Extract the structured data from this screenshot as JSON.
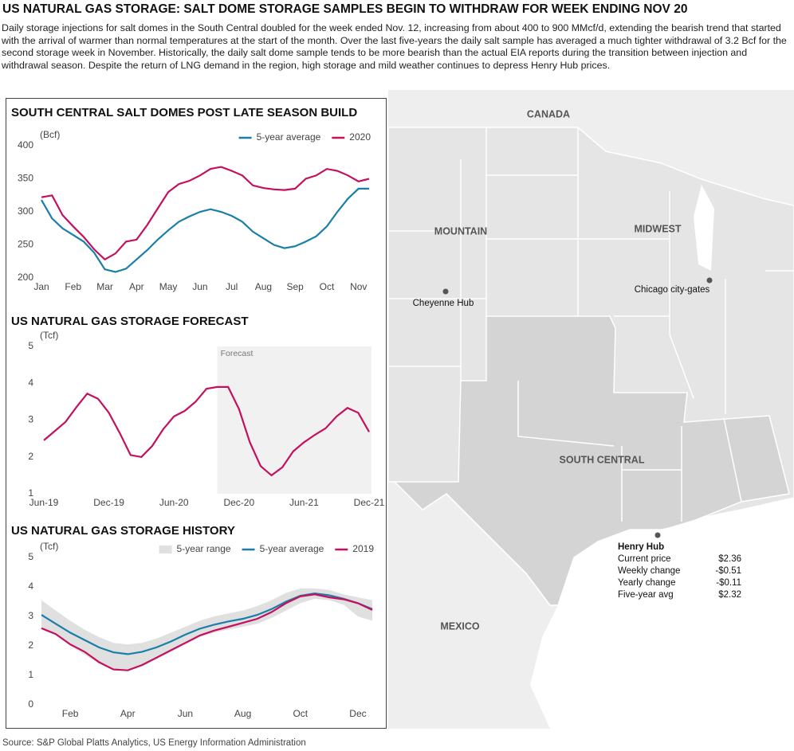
{
  "header": {
    "title": "US NATURAL GAS STORAGE: SALT DOME STORAGE SAMPLES BEGIN TO WITHDRAW FOR WEEK ENDING NOV 20",
    "description": "Daily storage injections for salt domes in the South Central doubled for the week ended Nov. 12, increasing from about 400 to 900 MMcf/d, extending the bearish trend that started with the arrival of warmer than normal temperatures at the start of the month. Over the last five-years the daily salt sample has averaged a much tighter withdrawal of 3.2 Bcf for the second storage week in November. Historically, the daily salt dome sample tends to be more bearish than the actual EIA reports during the transition between injection and withdrawal season. Despite the return of LNG demand in the region, high storage and mild weather continues to depress Henry Hub prices."
  },
  "chart_data": [
    {
      "type": "line",
      "title": "SOUTH CENTRAL SALT DOMES POST LATE SEASON BUILD",
      "y_label": "(Bcf)",
      "categories": [
        "Jan",
        null,
        null,
        "Feb",
        null,
        null,
        "Mar",
        null,
        null,
        "Apr",
        null,
        null,
        "May",
        null,
        null,
        "Jun",
        null,
        null,
        "Jul",
        null,
        null,
        "Aug",
        null,
        null,
        "Sep",
        null,
        null,
        "Oct",
        null,
        null,
        "Nov",
        null
      ],
      "series": [
        {
          "name": "5-year average",
          "color": "#1a7fa8",
          "values": [
            318,
            290,
            275,
            265,
            255,
            238,
            213,
            209,
            214,
            228,
            242,
            258,
            272,
            285,
            293,
            300,
            304,
            300,
            294,
            285,
            270,
            260,
            250,
            245,
            248,
            255,
            263,
            278,
            300,
            320,
            335,
            335
          ]
        },
        {
          "name": "2020",
          "color": "#c4105e",
          "values": [
            322,
            325,
            295,
            278,
            262,
            243,
            228,
            237,
            255,
            258,
            280,
            305,
            330,
            342,
            347,
            355,
            365,
            368,
            362,
            355,
            340,
            336,
            334,
            333,
            335,
            350,
            355,
            365,
            362,
            355,
            346,
            350
          ]
        }
      ],
      "ylim": [
        200,
        400
      ],
      "yticks": [
        200,
        250,
        300,
        350,
        400
      ]
    },
    {
      "type": "line",
      "title": "US NATURAL GAS STORAGE FORECAST",
      "y_label": "(Tcf)",
      "categories": [
        "Jun-19",
        null,
        null,
        null,
        null,
        null,
        "Dec-19",
        null,
        null,
        null,
        null,
        null,
        "Jun-20",
        null,
        null,
        null,
        null,
        null,
        "Dec-20",
        null,
        null,
        null,
        null,
        null,
        "Jun-21",
        null,
        null,
        null,
        null,
        null,
        "Dec-21"
      ],
      "color": "#c4105e",
      "values": [
        2.45,
        2.7,
        2.95,
        3.35,
        3.72,
        3.58,
        3.2,
        2.65,
        2.05,
        2.0,
        2.3,
        2.75,
        3.1,
        3.25,
        3.5,
        3.85,
        3.9,
        3.9,
        3.3,
        2.4,
        1.75,
        1.5,
        1.72,
        2.15,
        2.4,
        2.6,
        2.78,
        3.1,
        3.33,
        3.2,
        2.68
      ],
      "forecast": {
        "label": "Forecast",
        "start_index": 16
      },
      "ylim": [
        1,
        5
      ],
      "yticks": [
        1,
        2,
        3,
        4,
        5
      ]
    },
    {
      "type": "line",
      "title": "US NATURAL GAS STORAGE HISTORY",
      "y_label": "(Tcf)",
      "categories": [
        null,
        null,
        "Feb",
        null,
        null,
        null,
        "Apr",
        null,
        null,
        null,
        "Jun",
        null,
        null,
        null,
        "Aug",
        null,
        null,
        null,
        "Oct",
        null,
        null,
        null,
        "Dec",
        null
      ],
      "series": [
        {
          "name": "5-year range",
          "color": "#e0e0e0",
          "low": [
            2.65,
            2.4,
            2.0,
            1.7,
            1.4,
            1.2,
            1.15,
            1.3,
            1.55,
            1.8,
            2.05,
            2.3,
            2.45,
            2.55,
            2.65,
            2.75,
            2.95,
            3.2,
            3.45,
            3.6,
            3.55,
            3.4,
            3.0,
            2.85
          ],
          "high": [
            3.55,
            3.2,
            2.85,
            2.55,
            2.3,
            2.1,
            2.05,
            2.1,
            2.25,
            2.45,
            2.65,
            2.85,
            3.0,
            3.1,
            3.2,
            3.35,
            3.55,
            3.8,
            3.95,
            3.95,
            3.9,
            3.75,
            3.65,
            3.55
          ]
        },
        {
          "name": "5-year average",
          "color": "#1a7fa8",
          "values": [
            3.05,
            2.75,
            2.45,
            2.2,
            1.95,
            1.78,
            1.72,
            1.8,
            1.95,
            2.15,
            2.38,
            2.58,
            2.72,
            2.83,
            2.92,
            3.05,
            3.25,
            3.5,
            3.7,
            3.78,
            3.72,
            3.6,
            3.45,
            3.25
          ]
        },
        {
          "name": "2019",
          "color": "#c4105e",
          "values": [
            2.6,
            2.4,
            2.05,
            1.8,
            1.45,
            1.2,
            1.17,
            1.35,
            1.6,
            1.85,
            2.1,
            2.35,
            2.52,
            2.65,
            2.78,
            2.92,
            3.15,
            3.45,
            3.68,
            3.75,
            3.65,
            3.58,
            3.45,
            3.22
          ]
        }
      ],
      "ylim": [
        0,
        5
      ],
      "yticks": [
        0,
        1,
        2,
        3,
        4,
        5
      ]
    }
  ],
  "map": {
    "regions": [
      "CANADA",
      "MOUNTAIN",
      "MIDWEST",
      "SOUTH CENTRAL",
      "MEXICO"
    ],
    "hubs": [
      "Cheyenne Hub",
      "Chicago city-gates"
    ],
    "henry_hub": {
      "title": "Henry Hub",
      "rows": [
        [
          "Current price",
          "$2.36"
        ],
        [
          "Weekly change",
          "-$0.51"
        ],
        [
          "Yearly change",
          "-$0.11"
        ],
        [
          "Five-year avg",
          "$2.32"
        ]
      ]
    }
  },
  "source": "Source: S&P Global Platts Analytics, US Energy Information Administration"
}
